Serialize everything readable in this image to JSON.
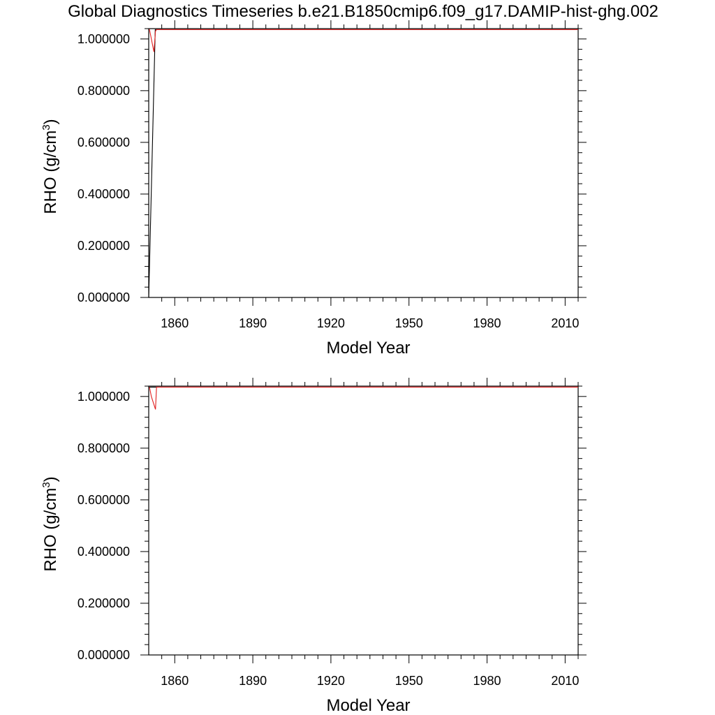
{
  "title": "Global Diagnostics Timeseries b.e21.B1850cmip6.f09_g17.DAMIP-hist-ghg.002",
  "colors": {
    "series_black": "#000000",
    "series_red": "#e02020"
  },
  "chart_data": [
    {
      "type": "line",
      "title": "",
      "xlabel": "Model Year",
      "ylabel": "RHO (g/cm",
      "ylabel_sup": "3",
      "ylabel_close": ")",
      "xlim": [
        1850,
        2015
      ],
      "ylim": [
        0.0,
        1.04
      ],
      "xticks": [
        1860,
        1890,
        1920,
        1950,
        1980,
        2010
      ],
      "xtick_labels": [
        "1860",
        "1890",
        "1920",
        "1950",
        "1980",
        "2010"
      ],
      "yticks": [
        0.0,
        0.2,
        0.4,
        0.6,
        0.8,
        1.0
      ],
      "ytick_labels": [
        "0.000000",
        "0.200000",
        "0.400000",
        "0.600000",
        "0.800000",
        "1.000000"
      ],
      "grid": false,
      "series": [
        {
          "color": "#000000",
          "x": [
            1850,
            1852.5,
            2015
          ],
          "y": [
            0.0,
            1.036,
            1.036
          ]
        },
        {
          "color": "#e02020",
          "x": [
            1850.1,
            1850.3,
            1852.0,
            1852.6,
            1853.0,
            2015
          ],
          "y": [
            1.036,
            1.036,
            0.95,
            1.03,
            1.036,
            1.036
          ]
        }
      ]
    },
    {
      "type": "line",
      "title": "",
      "xlabel": "Model Year",
      "ylabel": "RHO (g/cm",
      "ylabel_sup": "3",
      "ylabel_close": ")",
      "xlim": [
        1850,
        2015
      ],
      "ylim": [
        0.0,
        1.04
      ],
      "xticks": [
        1860,
        1890,
        1920,
        1950,
        1980,
        2010
      ],
      "xtick_labels": [
        "1860",
        "1890",
        "1920",
        "1950",
        "1980",
        "2010"
      ],
      "yticks": [
        0.0,
        0.2,
        0.4,
        0.6,
        0.8,
        1.0
      ],
      "ytick_labels": [
        "0.000000",
        "0.200000",
        "0.400000",
        "0.600000",
        "0.800000",
        "1.000000"
      ],
      "grid": false,
      "series": [
        {
          "color": "#000000",
          "x": [
            1850,
            2015
          ],
          "y": [
            1.036,
            1.036
          ]
        },
        {
          "color": "#e02020",
          "x": [
            1850.3,
            1851.0,
            1852.6,
            1853.0,
            2015
          ],
          "y": [
            1.036,
            1.0,
            0.95,
            1.036,
            1.036
          ]
        }
      ]
    }
  ]
}
